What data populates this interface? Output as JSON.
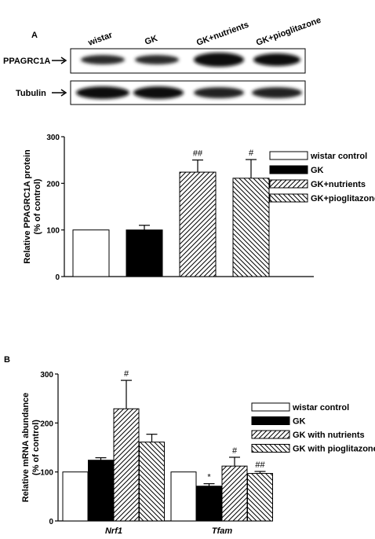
{
  "panels": {
    "a": {
      "letter": "A",
      "blot": {
        "lane_labels": [
          "wistar",
          "GK",
          "GK+nutrients",
          "GK+pioglitazone"
        ],
        "row_labels": [
          "PPAGRC1A",
          "Tubulin"
        ]
      }
    },
    "b": {
      "letter": "B"
    }
  },
  "chart_data": [
    {
      "type": "bar",
      "ylabel": "Relative PPAGRC1A protein\n(% of control)",
      "ylim": [
        0,
        300
      ],
      "yticks": [
        0,
        100,
        200,
        300
      ],
      "categories": [
        ""
      ],
      "series": [
        {
          "name": "wistar control",
          "pattern": "open",
          "values": [
            100
          ],
          "errors": [
            0
          ],
          "annotations": [
            ""
          ]
        },
        {
          "name": "GK",
          "pattern": "solid",
          "values": [
            100
          ],
          "errors": [
            10
          ],
          "annotations": [
            ""
          ]
        },
        {
          "name": "GK+nutrients",
          "pattern": "hatch-right",
          "values": [
            224
          ],
          "errors": [
            26
          ],
          "annotations": [
            "##"
          ]
        },
        {
          "name": "GK+pioglitazone",
          "pattern": "hatch-left",
          "values": [
            211
          ],
          "errors": [
            40
          ],
          "annotations": [
            "#"
          ]
        }
      ],
      "legend": "right",
      "grid": false
    },
    {
      "type": "bar",
      "ylabel": "Relative  mRNA abundance\n(% of control)",
      "ylim": [
        0,
        300
      ],
      "yticks": [
        0,
        100,
        200,
        300
      ],
      "categories": [
        "Nrf1",
        "Tfam"
      ],
      "series": [
        {
          "name": "wistar control",
          "pattern": "open",
          "values": [
            100,
            100
          ],
          "errors": [
            0,
            0
          ],
          "annotations": [
            "",
            ""
          ]
        },
        {
          "name": "GK",
          "pattern": "solid",
          "values": [
            124,
            71
          ],
          "errors": [
            5,
            5
          ],
          "annotations": [
            "",
            "*"
          ]
        },
        {
          "name": "GK with nutrients",
          "pattern": "hatch-right",
          "values": [
            229,
            112
          ],
          "errors": [
            58,
            18
          ],
          "annotations": [
            "#",
            "#"
          ]
        },
        {
          "name": "GK with pioglitazone",
          "pattern": "hatch-left",
          "values": [
            161,
            97
          ],
          "errors": [
            16,
            4
          ],
          "annotations": [
            "",
            "##"
          ]
        }
      ],
      "legend": "right",
      "grid": false
    }
  ]
}
